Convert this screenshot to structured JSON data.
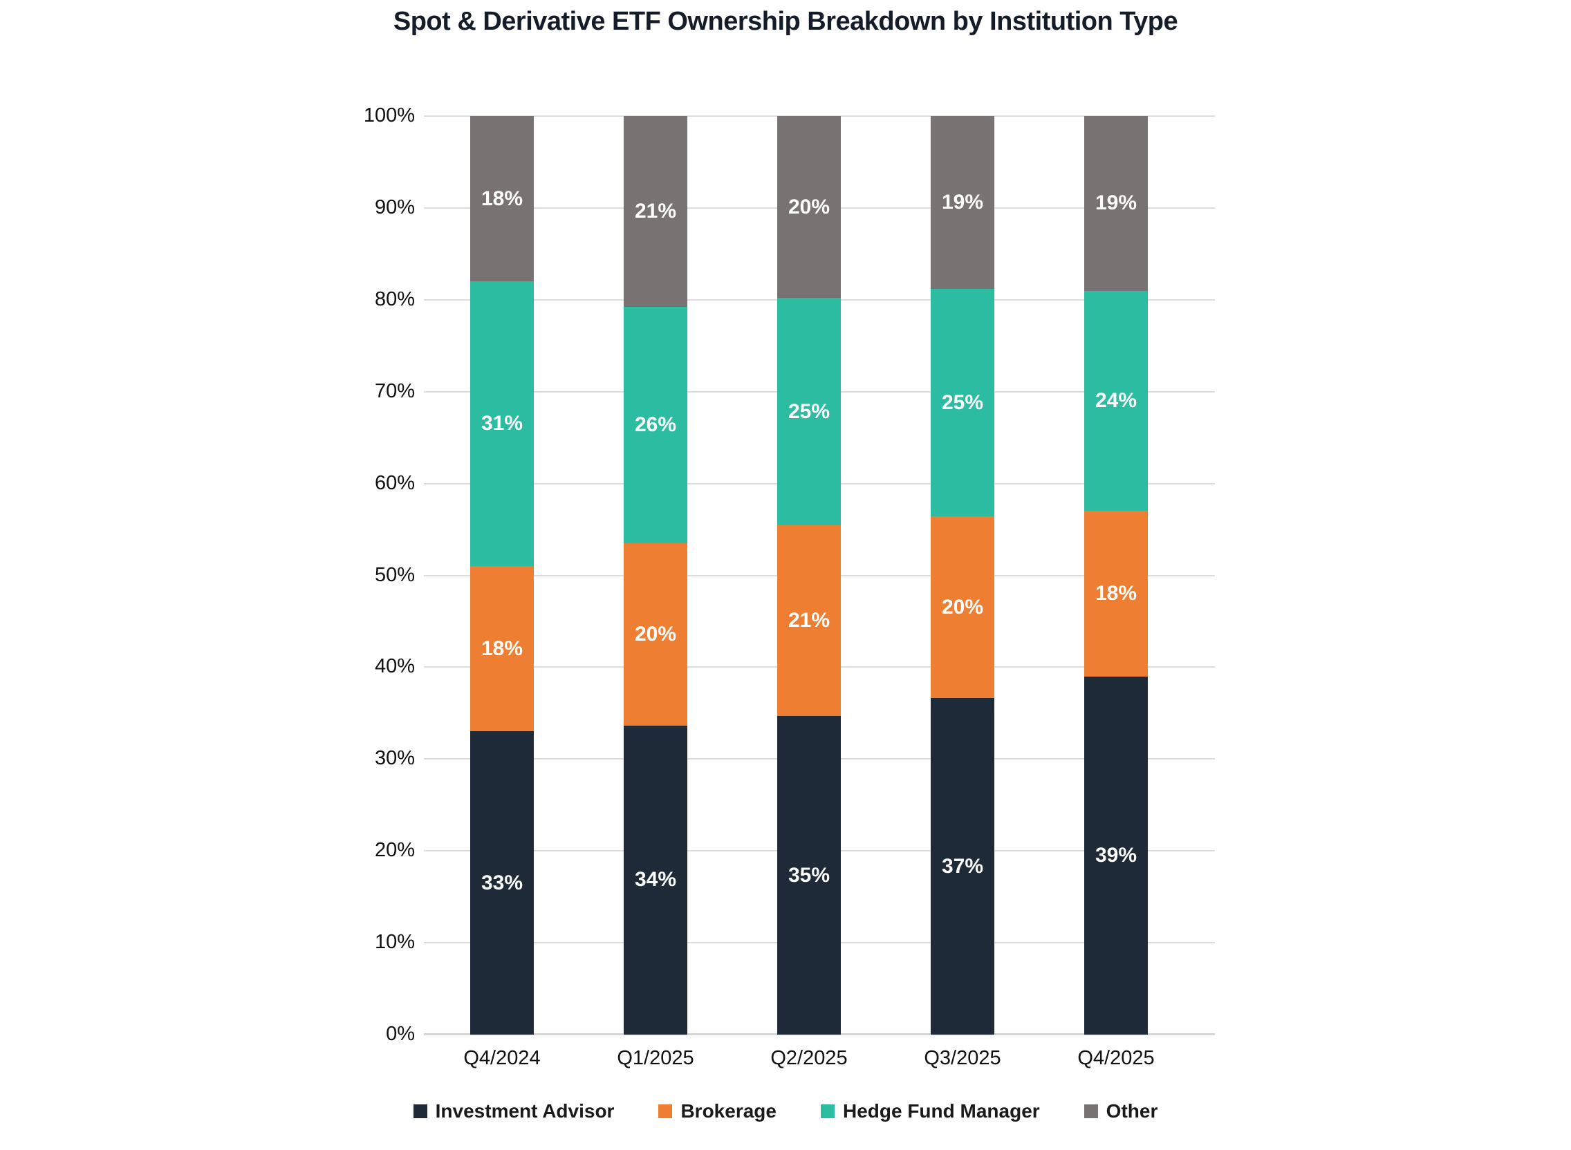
{
  "title": "Spot & Derivative ETF Ownership Breakdown by Institution Type",
  "chart_data": {
    "type": "bar",
    "stacked": true,
    "title": "Spot & Derivative ETF Ownership Breakdown by Institution Type",
    "categories": [
      "Q4/2024",
      "Q1/2025",
      "Q2/2025",
      "Q3/2025",
      "Q4/2025"
    ],
    "series": [
      {
        "name": "Investment Advisor",
        "color": "#1f2a38",
        "values": [
          33,
          34,
          35,
          37,
          39
        ]
      },
      {
        "name": "Brokerage",
        "color": "#ee7e31",
        "values": [
          18,
          20,
          21,
          20,
          18
        ]
      },
      {
        "name": "Hedge Fund Manager",
        "color": "#2bbca1",
        "values": [
          31,
          26,
          25,
          25,
          24
        ]
      },
      {
        "name": "Other",
        "color": "#797272",
        "values": [
          18,
          21,
          20,
          19,
          19
        ]
      }
    ],
    "data_label_suffix": "%",
    "xlabel": "",
    "ylabel": "",
    "ylim": [
      0,
      100
    ],
    "y_ticks": [
      "0%",
      "10%",
      "20%",
      "30%",
      "40%",
      "50%",
      "60%",
      "70%",
      "80%",
      "90%",
      "100%"
    ],
    "grid": true,
    "legend_position": "bottom"
  }
}
